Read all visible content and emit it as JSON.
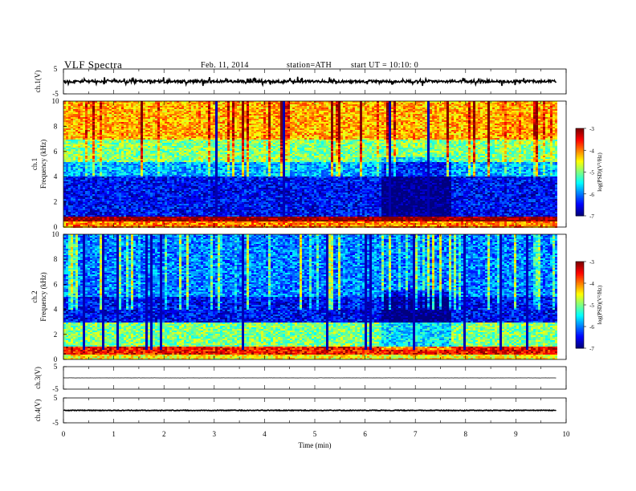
{
  "header": {
    "title": "VLF  Spectra",
    "date": "Feb. 11, 2014",
    "station": "station=ATH",
    "start": "start  UT  =   10:10: 0"
  },
  "chart_data": [
    {
      "type": "line",
      "panel": "ch1-waveform",
      "ylabel": "ch.1(V)",
      "ylim": [
        -5,
        5
      ],
      "yticks": [
        "5",
        "-5"
      ],
      "xlim": [
        0,
        10
      ],
      "color": "#000000",
      "trace_level_v": 0.0,
      "trace_amplitude_v": 1.0
    },
    {
      "type": "heatmap",
      "panel": "ch1-spectrogram",
      "ylabel": "ch.1\nFrequency  (kHz)",
      "ylabel_lines": [
        "ch.1",
        "Frequency  (kHz)"
      ],
      "ylim": [
        0,
        10
      ],
      "yticks": [
        "0",
        "2",
        "4",
        "6",
        "8",
        "10"
      ],
      "xlim": [
        0,
        9.8
      ],
      "colorbar": {
        "label": "log(PSD)(V²/Hz)",
        "ticks": [
          "-3",
          "-4",
          "-5",
          "-6",
          "-7"
        ],
        "range": [
          -7,
          -3
        ]
      },
      "bands_khz_psd": [
        [
          0,
          0.4,
          -4.0
        ],
        [
          0.4,
          0.8,
          -3.0
        ],
        [
          0.8,
          4.0,
          -6.5
        ],
        [
          4.0,
          5.2,
          -5.8
        ],
        [
          5.2,
          7.0,
          -5.0
        ],
        [
          7.0,
          10.0,
          -4.2
        ]
      ]
    },
    {
      "type": "heatmap",
      "panel": "ch2-spectrogram",
      "ylabel": "ch.2\nFrequency  (kHz)",
      "ylabel_lines": [
        "ch.2",
        "Frequency  (kHz)"
      ],
      "ylim": [
        0,
        10
      ],
      "yticks": [
        "0",
        "2",
        "4",
        "6",
        "8",
        "10"
      ],
      "xlim": [
        0,
        9.8
      ],
      "colorbar": {
        "label": "log(PSD)(V²/Hz)",
        "ticks": [
          "-3",
          "-4",
          "-5",
          "-6",
          "-7"
        ],
        "range": [
          -7,
          -3
        ]
      },
      "bands_khz_psd": [
        [
          0,
          0.4,
          -4.5
        ],
        [
          0.4,
          1.0,
          -3.5
        ],
        [
          1.0,
          3.0,
          -5.0
        ],
        [
          3.0,
          5.0,
          -6.5
        ],
        [
          5.0,
          10.0,
          -6.0
        ]
      ]
    },
    {
      "type": "line",
      "panel": "ch3-waveform",
      "ylabel": "ch.3(V)",
      "ylim": [
        -5,
        5
      ],
      "yticks": [
        "5",
        "-5"
      ],
      "xlim": [
        0,
        10
      ],
      "color": "#000000",
      "trace_level_v": 0.0,
      "trace_amplitude_v": 0.05
    },
    {
      "type": "line",
      "panel": "ch4-waveform",
      "ylabel": "ch.4(V)",
      "ylim": [
        -5,
        5
      ],
      "yticks": [
        "5",
        "-5"
      ],
      "xlim": [
        0,
        10
      ],
      "color": "#000000",
      "trace_level_v": 0.0,
      "trace_amplitude_v": 0.3,
      "xlabel": "Time  (min)",
      "xticks": [
        "0",
        "1",
        "2",
        "3",
        "4",
        "5",
        "6",
        "7",
        "8",
        "9",
        "10"
      ]
    }
  ]
}
